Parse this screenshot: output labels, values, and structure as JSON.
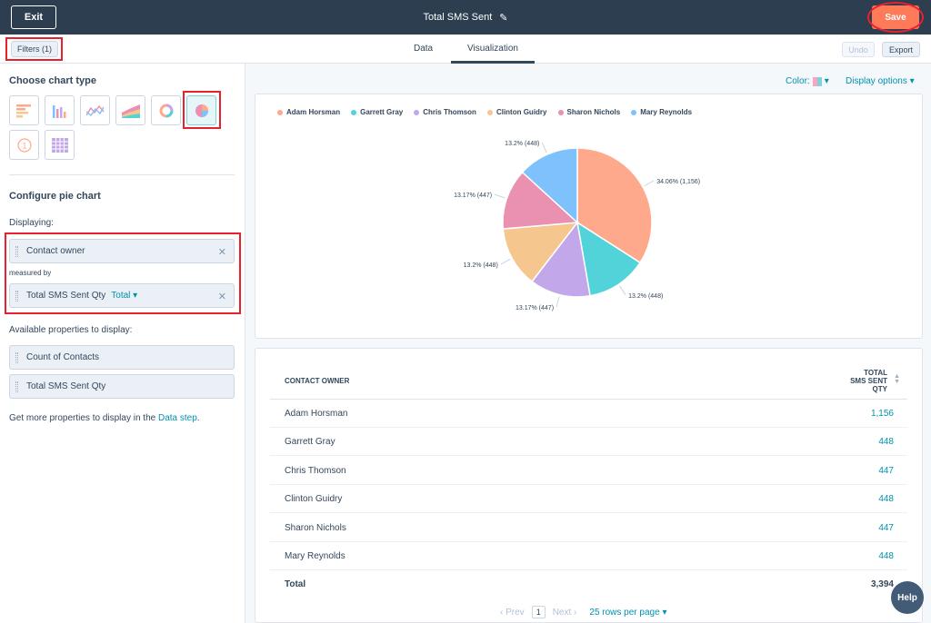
{
  "topbar": {
    "exit_label": "Exit",
    "report_title": "Total SMS Sent",
    "save_label": "Save"
  },
  "subbar": {
    "filters_label": "Filters (1)",
    "tabs": [
      {
        "label": "Data"
      },
      {
        "label": "Visualization",
        "active": true
      }
    ],
    "undo_label": "Undo",
    "export_label": "Export"
  },
  "sidebar": {
    "choose_chart_title": "Choose chart type",
    "chart_types": [
      {
        "icon": "horizontal-bar-chart-icon"
      },
      {
        "icon": "vertical-bar-chart-icon"
      },
      {
        "icon": "line-chart-icon"
      },
      {
        "icon": "area-chart-icon"
      },
      {
        "icon": "donut-chart-icon"
      },
      {
        "icon": "pie-chart-icon",
        "selected": true
      },
      {
        "icon": "single-value-icon"
      },
      {
        "icon": "table-chart-icon"
      }
    ],
    "configure_title": "Configure pie chart",
    "displaying_label": "Displaying:",
    "displaying_prop": "Contact owner",
    "measured_by_label": "measured by",
    "measure_prop": "Total SMS Sent Qty",
    "measure_agg": "Total",
    "available_title": "Available properties to display:",
    "available": [
      "Count of Contacts",
      "Total SMS Sent Qty"
    ],
    "more_text": "Get more properties to display in the ",
    "more_link": "Data step",
    "more_suffix": "."
  },
  "toolbar": {
    "color_label": "Color:",
    "display_options_label": "Display options"
  },
  "chart_data": {
    "type": "pie",
    "categories": [
      "Adam Horsman",
      "Garrett Gray",
      "Chris Thomson",
      "Clinton Guidry",
      "Sharon Nichols",
      "Mary Reynolds"
    ],
    "values": [
      1156,
      448,
      447,
      448,
      447,
      448
    ],
    "labels": [
      "34.06% (1,156)",
      "13.2% (448)",
      "13.17% (447)",
      "13.2% (448)",
      "13.17% (447)",
      "13.2% (448)"
    ],
    "colors": [
      "#ffa98c",
      "#51d3d9",
      "#c2a7ea",
      "#f5c78e",
      "#ea90b1",
      "#7fc1fb"
    ],
    "legend_position": "top-left"
  },
  "table": {
    "col_owner": "CONTACT OWNER",
    "col_sms_lines": [
      "TOTAL",
      "SMS SENT",
      "QTY"
    ],
    "rows": [
      {
        "owner": "Adam Horsman",
        "value": "1,156"
      },
      {
        "owner": "Garrett Gray",
        "value": "448"
      },
      {
        "owner": "Chris Thomson",
        "value": "447"
      },
      {
        "owner": "Clinton Guidry",
        "value": "448"
      },
      {
        "owner": "Sharon Nichols",
        "value": "447"
      },
      {
        "owner": "Mary Reynolds",
        "value": "448"
      }
    ],
    "total_label": "Total",
    "total_value": "3,394"
  },
  "pager": {
    "prev": "Prev",
    "page": "1",
    "next": "Next",
    "rows_per_page": "25 rows per page"
  },
  "help_label": "Help"
}
